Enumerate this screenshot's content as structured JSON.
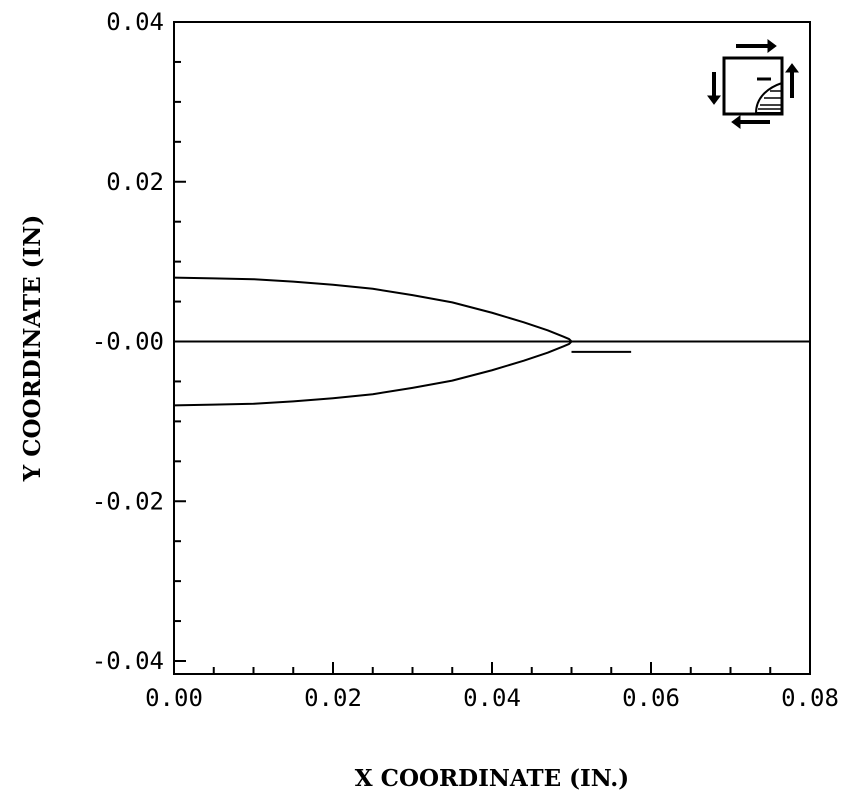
{
  "chart_data": {
    "type": "line",
    "title": "",
    "xlabel": "X COORDINATE (IN.)",
    "ylabel": "Y COORDINATE (IN)",
    "xlim": [
      0.0,
      0.08
    ],
    "ylim": [
      -0.042,
      0.04
    ],
    "x_ticks": [
      0.0,
      0.02,
      0.04,
      0.06,
      0.08
    ],
    "x_tick_labels": [
      "0.00",
      "0.02",
      "0.04",
      "0.06",
      "0.08"
    ],
    "y_ticks": [
      0.04,
      0.02,
      0.0,
      -0.02,
      -0.04
    ],
    "y_tick_labels": [
      "0.04",
      "0.02",
      "-0.00",
      "-0.02",
      "-0.04"
    ],
    "grid": false,
    "legend": "none",
    "series": [
      {
        "x": [
          0.0,
          0.005,
          0.01,
          0.015,
          0.02,
          0.025,
          0.03,
          0.035,
          0.04,
          0.044,
          0.047,
          0.049,
          0.0497,
          0.05
        ],
        "y": [
          0.008,
          0.0079,
          0.0078,
          0.0075,
          0.0071,
          0.0066,
          0.0058,
          0.0049,
          0.0036,
          0.0024,
          0.0014,
          0.0006,
          0.0003,
          0.0
        ]
      },
      {
        "x": [
          0.0,
          0.005,
          0.01,
          0.015,
          0.02,
          0.025,
          0.03,
          0.035,
          0.04,
          0.044,
          0.047,
          0.049,
          0.0497,
          0.05
        ],
        "y": [
          -0.008,
          -0.0079,
          -0.0078,
          -0.0075,
          -0.0071,
          -0.0066,
          -0.0058,
          -0.0049,
          -0.0036,
          -0.0024,
          -0.0014,
          -0.0006,
          -0.0003,
          0.0
        ]
      },
      {
        "x": [
          0.05,
          0.0575
        ],
        "y": [
          -0.0013,
          -0.0013
        ]
      },
      {
        "x": [
          0.0,
          0.08
        ],
        "y": [
          0.0,
          0.0
        ]
      }
    ]
  }
}
